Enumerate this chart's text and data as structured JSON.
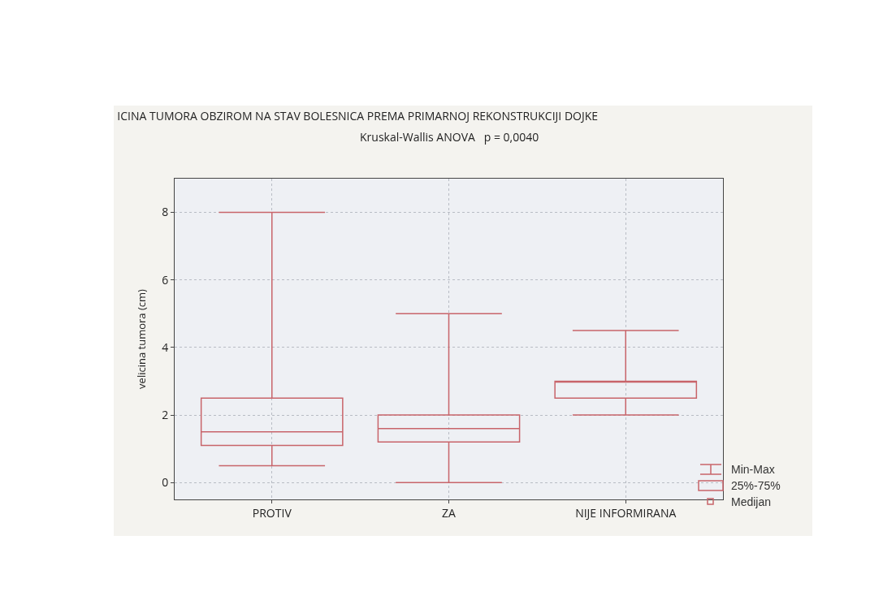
{
  "chart_data": {
    "type": "box",
    "title": "ICINA TUMORA OBZIROM NA STAV BOLESNICA PREMA PRIMARNOJ REKONSTRUKCIJI DOJKE",
    "subtitle": "Kruskal-Wallis ANOVA   p = 0,0040",
    "ylabel": "velicina tumora (cm)",
    "categories": [
      "PROTIV",
      "ZA",
      "NIJE INFORMIRANA"
    ],
    "series": [
      {
        "color": "#c8646a",
        "boxes": [
          {
            "low": 0.5,
            "q1": 1.1,
            "median": 1.5,
            "q3": 2.5,
            "high": 8
          },
          {
            "low": 0,
            "q1": 1.2,
            "median": 1.6,
            "q3": 2,
            "high": 5
          },
          {
            "low": 2,
            "q1": 2.5,
            "median": 3,
            "q3": 3,
            "high": 4.5
          }
        ]
      }
    ],
    "ylim": [
      -0.5,
      9
    ],
    "yticks": [
      0,
      2,
      4,
      6,
      8
    ],
    "grid": true,
    "annotations": [
      "Min-Max",
      "25%-75%",
      "Medijan"
    ]
  }
}
